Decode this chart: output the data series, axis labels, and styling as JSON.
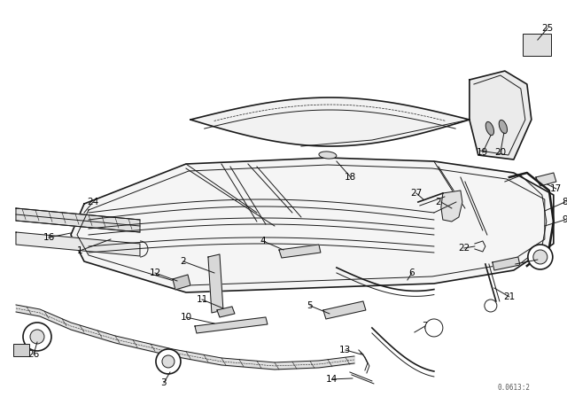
{
  "bg_color": "#ffffff",
  "line_color": "#1a1a1a",
  "watermark": "0.0613:2",
  "figsize": [
    6.4,
    4.48
  ],
  "dpi": 100
}
